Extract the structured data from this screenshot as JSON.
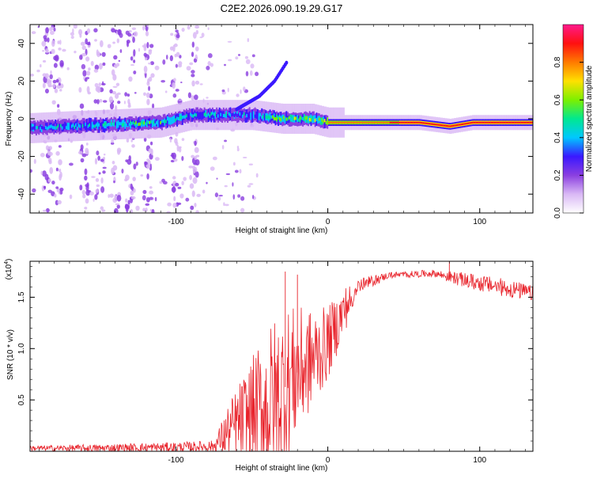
{
  "title": "C2E2.2026.090.19.29.G17",
  "chart_data": [
    {
      "type": "heatmap",
      "title": "C2E2.2026.090.19.29.G17",
      "xlabel": "Height of straight line (km)",
      "ylabel": "Frequency (Hz)",
      "xlim": [
        -196,
        135
      ],
      "ylim": [
        -50,
        50
      ],
      "x_ticks": [
        -100,
        0,
        100
      ],
      "y_ticks": [
        -40,
        -20,
        0,
        20,
        40
      ],
      "colorbar": {
        "label": "Normalized spectral amplitude",
        "range": [
          0.0,
          1.0
        ],
        "ticks": [
          0.0,
          0.2,
          0.4,
          0.6,
          0.8
        ],
        "tick_labels": [
          "0.0",
          "0.2",
          "0.4",
          "0.6",
          "0.8"
        ],
        "colors": [
          "#ffffff",
          "#d9b8f5",
          "#8b3fe0",
          "#3a18ff",
          "#00c8ff",
          "#00e890",
          "#7cf000",
          "#ffe000",
          "#ff7a00",
          "#ff1010",
          "#ff1a8c"
        ]
      },
      "ridge": [
        {
          "x": -196,
          "y": -5,
          "amp": 0.45
        },
        {
          "x": -170,
          "y": -4,
          "amp": 0.45
        },
        {
          "x": -140,
          "y": -3,
          "amp": 0.5
        },
        {
          "x": -110,
          "y": -2,
          "amp": 0.55
        },
        {
          "x": -90,
          "y": 2,
          "amp": 0.5
        },
        {
          "x": -70,
          "y": 2,
          "amp": 0.45
        },
        {
          "x": -50,
          "y": 2,
          "amp": 0.45
        },
        {
          "x": -30,
          "y": 0,
          "amp": 0.6
        },
        {
          "x": -10,
          "y": 0,
          "amp": 0.65
        },
        {
          "x": 0,
          "y": -2,
          "amp": 0.75
        },
        {
          "x": 20,
          "y": -2,
          "amp": 0.8
        },
        {
          "x": 60,
          "y": -2,
          "amp": 0.9
        },
        {
          "x": 80,
          "y": -4,
          "amp": 0.9
        },
        {
          "x": 95,
          "y": -2,
          "amp": 0.9
        },
        {
          "x": 135,
          "y": -2,
          "amp": 0.9
        }
      ],
      "branch": [
        {
          "x": -60,
          "y": 5
        },
        {
          "x": -45,
          "y": 12
        },
        {
          "x": -35,
          "y": 20
        },
        {
          "x": -27,
          "y": 30
        }
      ]
    },
    {
      "type": "line",
      "xlabel": "Height of straight line (km)",
      "ylabel": "SNR (10 * v/v)",
      "scale_note": "(x10",
      "scale_exp": "4",
      "scale_close": ")",
      "xlim": [
        -196,
        135
      ],
      "ylim": [
        0,
        1.85
      ],
      "x_ticks": [
        -100,
        0,
        100
      ],
      "y_ticks": [
        0.5,
        1.0,
        1.5
      ],
      "y_tick_labels": [
        "0.5",
        "1.0",
        "1.5"
      ],
      "color": "#e8222a",
      "envelope": [
        {
          "x": -196,
          "base": 0.03,
          "spread": 0.03
        },
        {
          "x": -150,
          "base": 0.03,
          "spread": 0.05
        },
        {
          "x": -100,
          "base": 0.04,
          "spread": 0.06
        },
        {
          "x": -75,
          "base": 0.05,
          "spread": 0.07
        },
        {
          "x": -65,
          "base": 0.2,
          "spread": 0.35
        },
        {
          "x": -50,
          "base": 0.35,
          "spread": 0.7
        },
        {
          "x": -35,
          "base": 0.45,
          "spread": 1.1
        },
        {
          "x": -25,
          "base": 0.7,
          "spread": 0.9
        },
        {
          "x": -10,
          "base": 0.9,
          "spread": 0.6
        },
        {
          "x": 0,
          "base": 1.05,
          "spread": 0.45
        },
        {
          "x": 10,
          "base": 1.35,
          "spread": 0.3
        },
        {
          "x": 20,
          "base": 1.62,
          "spread": 0.15
        },
        {
          "x": 40,
          "base": 1.72,
          "spread": 0.06
        },
        {
          "x": 70,
          "base": 1.74,
          "spread": 0.07
        },
        {
          "x": 90,
          "base": 1.68,
          "spread": 0.15
        },
        {
          "x": 120,
          "base": 1.6,
          "spread": 0.18
        },
        {
          "x": 135,
          "base": 1.55,
          "spread": 0.15
        }
      ],
      "peaks": [
        {
          "x": -28,
          "y": 1.75
        },
        {
          "x": -20,
          "y": 1.72
        },
        {
          "x": 80,
          "y": 1.85
        }
      ]
    }
  ]
}
